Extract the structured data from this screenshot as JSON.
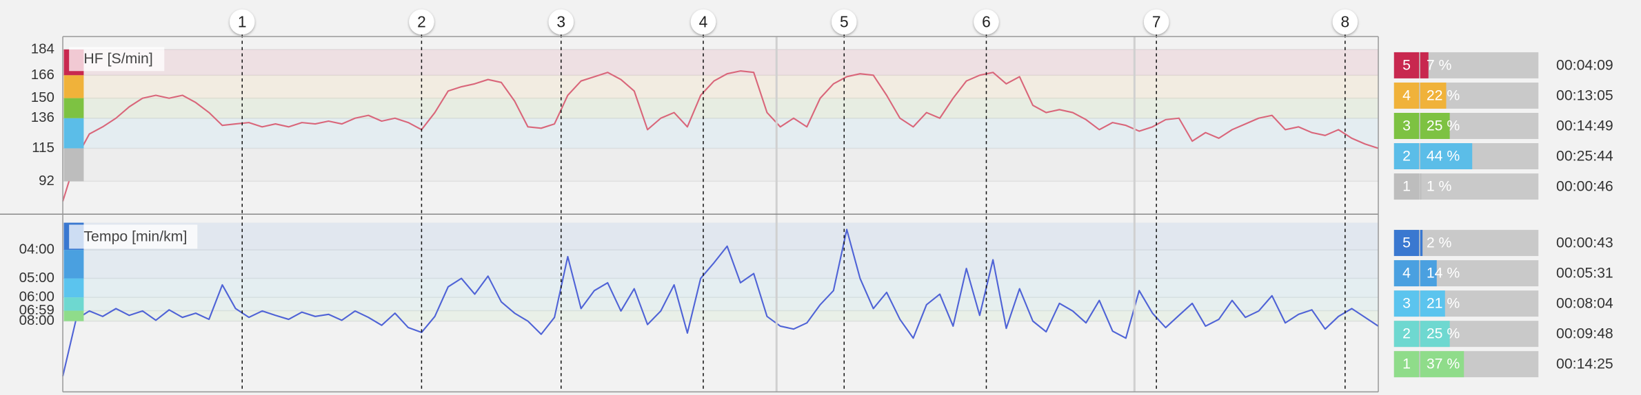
{
  "chart_data": [
    {
      "type": "line",
      "ylim": [
        69,
        193
      ],
      "yticks": [
        92,
        115,
        136,
        150,
        166,
        184
      ],
      "grid": true,
      "yscale": "linear",
      "series": [
        {
          "name": "HF [S/min]",
          "color": "#d9667a",
          "values": [
            78,
            108,
            125,
            130,
            136,
            144,
            150,
            152,
            150,
            152,
            147,
            140,
            131,
            132,
            133,
            130,
            132,
            130,
            133,
            132,
            134,
            132,
            136,
            138,
            134,
            136,
            133,
            128,
            140,
            155,
            158,
            160,
            163,
            161,
            148,
            130,
            129,
            132,
            152,
            162,
            165,
            168,
            163,
            155,
            128,
            136,
            140,
            130,
            152,
            162,
            167,
            169,
            168,
            140,
            130,
            136,
            130,
            150,
            160,
            165,
            167,
            166,
            152,
            136,
            130,
            140,
            136,
            150,
            162,
            166,
            168,
            160,
            165,
            145,
            140,
            142,
            140,
            135,
            128,
            133,
            131,
            127,
            130,
            135,
            136,
            120,
            126,
            122,
            128,
            132,
            136,
            138,
            128,
            130,
            126,
            124,
            128,
            122,
            118,
            115
          ]
        }
      ],
      "zones": {
        "labels": [
          "5",
          "4",
          "3",
          "2",
          "1"
        ],
        "colors": [
          "#c8284f",
          "#f0b23a",
          "#7dc242",
          "#5bbde8",
          "#bdbdbd"
        ],
        "values": [
          7,
          22,
          25,
          44,
          1
        ],
        "value_labels": [
          "7 %",
          "22 %",
          "25 %",
          "44 %",
          "1 %"
        ],
        "times": [
          "00:04:09",
          "00:13:05",
          "00:14:49",
          "00:25:44",
          "00:00:46"
        ]
      }
    },
    {
      "type": "line",
      "ylim": [
        3.2,
        1000
      ],
      "yscale": "reciprocal",
      "grid": true,
      "yticks": [
        {
          "value": 4,
          "label": "04:00"
        },
        {
          "value": 5,
          "label": "05:00"
        },
        {
          "value": 6,
          "label": "06:00"
        },
        {
          "value": 6.98,
          "label": "06:59"
        },
        {
          "value": 8,
          "label": "08:00"
        }
      ],
      "series": [
        {
          "name": "Tempo [min/km]",
          "color": "#4f63d6",
          "values": [
            35,
            7.8,
            7.0,
            7.5,
            6.8,
            7.4,
            7.0,
            7.9,
            6.9,
            7.6,
            7.2,
            7.8,
            5.3,
            6.8,
            7.6,
            7.0,
            7.4,
            7.8,
            7.1,
            7.5,
            7.3,
            7.9,
            7.0,
            7.6,
            8.5,
            7.2,
            8.8,
            9.5,
            7.5,
            5.4,
            5.0,
            5.8,
            4.9,
            6.3,
            7.2,
            8.0,
            9.8,
            7.6,
            4.2,
            6.8,
            5.6,
            5.2,
            7.0,
            5.5,
            8.4,
            7.0,
            5.3,
            9.6,
            5.0,
            4.4,
            3.9,
            5.2,
            4.8,
            7.5,
            8.6,
            9.0,
            8.2,
            6.5,
            5.6,
            3.5,
            5.0,
            6.8,
            5.7,
            7.8,
            10.5,
            6.5,
            5.8,
            8.6,
            4.6,
            7.4,
            4.3,
            8.9,
            5.5,
            8.0,
            9.4,
            6.4,
            7.0,
            8.2,
            6.2,
            9.3,
            10.5,
            5.6,
            7.2,
            8.8,
            7.4,
            6.4,
            8.6,
            7.8,
            6.2,
            7.6,
            7.0,
            5.9,
            8.2,
            7.3,
            6.9,
            9.0,
            7.5,
            6.8,
            7.6,
            8.6
          ]
        }
      ],
      "zones": {
        "labels": [
          "5",
          "4",
          "3",
          "2",
          "1"
        ],
        "colors": [
          "#3a78d0",
          "#4aa0e0",
          "#5bc4ee",
          "#6ed8d0",
          "#8fdc8a"
        ],
        "values": [
          2,
          14,
          21,
          25,
          37
        ],
        "value_labels": [
          "2 %",
          "14 %",
          "21 %",
          "25 %",
          "37 %"
        ],
        "times": [
          "00:00:43",
          "00:05:31",
          "00:08:04",
          "00:09:48",
          "00:14:25"
        ]
      }
    }
  ],
  "laps": {
    "labels": [
      "1",
      "2",
      "3",
      "4",
      "5",
      "6",
      "7",
      "8"
    ],
    "x": [
      13.5,
      27.0,
      37.5,
      48.2,
      58.8,
      69.5,
      82.3,
      96.5
    ]
  }
}
